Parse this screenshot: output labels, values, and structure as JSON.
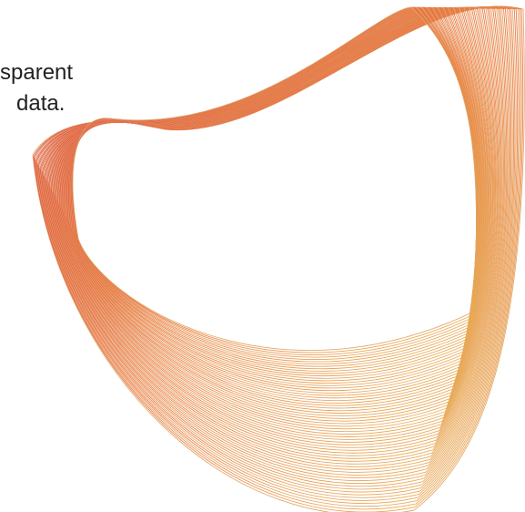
{
  "hero": {
    "line_1": "sparent",
    "line_2": "data."
  },
  "art": {
    "gradient_start": "#e24a43",
    "gradient_mid": "#f07a3b",
    "gradient_end": "#efb24c",
    "line_color_secondary": "#d9a86d"
  }
}
